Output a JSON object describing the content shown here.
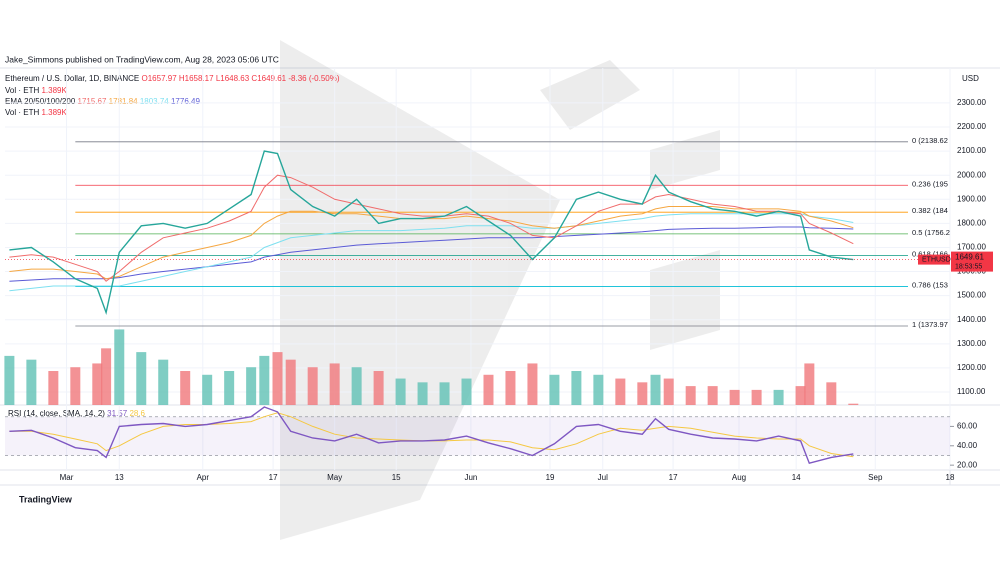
{
  "header": {
    "published": "Jake_Simmons published on TradingView.com, Aug 28, 2023 05:06 UTC",
    "currency": "USD",
    "brand": "TradingView"
  },
  "legend": {
    "symbol": "Ethereum / U.S. Dollar, 1D, BINANCE",
    "open": "O1657.97",
    "high": "H1658.17",
    "low": "L1648.63",
    "close": "C1649.61",
    "change": "-8.36 (-0.50%)",
    "vol1": "Vol · ETH",
    "vol1_value": "1.389K",
    "ema": "EMA 20/50/100/200",
    "vol2": "Vol · ETH",
    "vol2_value": "1.389K",
    "rsi": "RSI (14, close, SMA, 14, 2)"
  },
  "chart_data": {
    "type": "line",
    "ylim": [
      1046,
      2445
    ],
    "xlim": [
      "2023-02-15",
      "2023-09-18"
    ],
    "yticks": [
      {
        "value": 1100,
        "label": "1100.00"
      },
      {
        "value": 1200,
        "label": "1200.00"
      },
      {
        "value": 1300,
        "label": "1300.00"
      },
      {
        "value": 1400,
        "label": "1400.00"
      },
      {
        "value": 1500,
        "label": "1500.00"
      },
      {
        "value": 1600,
        "label": "1600.00"
      },
      {
        "value": 1700,
        "label": "1700.00"
      },
      {
        "value": 1800,
        "label": "1800.00"
      },
      {
        "value": 1900,
        "label": "1900.00"
      },
      {
        "value": 2000,
        "label": "2000.00"
      },
      {
        "value": 2100,
        "label": "2100.00"
      },
      {
        "value": 2200,
        "label": "2200.00"
      },
      {
        "value": 2300,
        "label": "2300.00"
      }
    ],
    "xticks": [
      {
        "value": "2023-03-01",
        "label": "Mar"
      },
      {
        "value": "2023-03-13",
        "label": "13"
      },
      {
        "value": "2023-04-01",
        "label": "Apr"
      },
      {
        "value": "2023-04-17",
        "label": "17"
      },
      {
        "value": "2023-05-01",
        "label": "May"
      },
      {
        "value": "2023-05-15",
        "label": "15"
      },
      {
        "value": "2023-06-01",
        "label": "Jun"
      },
      {
        "value": "2023-06-19",
        "label": "19"
      },
      {
        "value": "2023-07-01",
        "label": "Jul"
      },
      {
        "value": "2023-07-17",
        "label": "17"
      },
      {
        "value": "2023-08-01",
        "label": "Aug"
      },
      {
        "value": "2023-08-14",
        "label": "14"
      },
      {
        "value": "2023-09-01",
        "label": "Sep"
      },
      {
        "value": "2023-09-18",
        "label": "18"
      }
    ],
    "x": [
      "2023-02-16",
      "2023-02-21",
      "2023-02-26",
      "2023-03-03",
      "2023-03-08",
      "2023-03-10",
      "2023-03-13",
      "2023-03-18",
      "2023-03-23",
      "2023-03-28",
      "2023-04-02",
      "2023-04-07",
      "2023-04-12",
      "2023-04-15",
      "2023-04-18",
      "2023-04-21",
      "2023-04-26",
      "2023-05-01",
      "2023-05-06",
      "2023-05-11",
      "2023-05-16",
      "2023-05-21",
      "2023-05-26",
      "2023-05-31",
      "2023-06-05",
      "2023-06-10",
      "2023-06-15",
      "2023-06-20",
      "2023-06-25",
      "2023-06-30",
      "2023-07-05",
      "2023-07-10",
      "2023-07-13",
      "2023-07-16",
      "2023-07-21",
      "2023-07-26",
      "2023-07-31",
      "2023-08-05",
      "2023-08-10",
      "2023-08-15",
      "2023-08-17",
      "2023-08-22",
      "2023-08-27"
    ],
    "series": [
      {
        "name": "ETHUSD",
        "color": "#26a69a",
        "values": [
          1690,
          1700,
          1640,
          1570,
          1530,
          1430,
          1680,
          1790,
          1800,
          1780,
          1800,
          1860,
          1920,
          2100,
          2090,
          1940,
          1870,
          1830,
          1900,
          1800,
          1820,
          1820,
          1830,
          1870,
          1810,
          1750,
          1650,
          1740,
          1900,
          1930,
          1900,
          1880,
          2000,
          1930,
          1890,
          1860,
          1850,
          1830,
          1850,
          1830,
          1690,
          1660,
          1649.61
        ]
      },
      {
        "name": "1715.67",
        "color": "#f06c6c",
        "values": [
          1660,
          1670,
          1660,
          1630,
          1600,
          1560,
          1600,
          1680,
          1740,
          1760,
          1780,
          1810,
          1850,
          1950,
          2000,
          1990,
          1950,
          1900,
          1880,
          1860,
          1840,
          1830,
          1830,
          1840,
          1830,
          1800,
          1750,
          1740,
          1790,
          1850,
          1880,
          1880,
          1910,
          1920,
          1900,
          1880,
          1870,
          1850,
          1850,
          1840,
          1800,
          1760,
          1715.67
        ]
      },
      {
        "name": "1781.84",
        "color": "#f5a742",
        "values": [
          1600,
          1610,
          1610,
          1600,
          1590,
          1570,
          1580,
          1620,
          1660,
          1680,
          1700,
          1720,
          1750,
          1800,
          1830,
          1850,
          1850,
          1840,
          1840,
          1830,
          1820,
          1820,
          1820,
          1830,
          1820,
          1810,
          1790,
          1780,
          1790,
          1810,
          1830,
          1840,
          1860,
          1870,
          1870,
          1870,
          1860,
          1860,
          1860,
          1850,
          1830,
          1810,
          1781.84
        ]
      },
      {
        "name": "1803.74",
        "color": "#7ee0f0",
        "values": [
          1520,
          1530,
          1540,
          1540,
          1540,
          1540,
          1540,
          1560,
          1580,
          1600,
          1620,
          1640,
          1660,
          1700,
          1720,
          1740,
          1750,
          1760,
          1770,
          1770,
          1770,
          1775,
          1780,
          1790,
          1790,
          1790,
          1780,
          1780,
          1790,
          1800,
          1810,
          1820,
          1830,
          1835,
          1840,
          1840,
          1840,
          1840,
          1840,
          1840,
          1830,
          1820,
          1803.74
        ]
      },
      {
        "name": "1776.49",
        "color": "#5b5bd6",
        "values": [
          1560,
          1565,
          1570,
          1570,
          1570,
          1570,
          1575,
          1590,
          1600,
          1610,
          1620,
          1630,
          1640,
          1660,
          1670,
          1680,
          1690,
          1700,
          1710,
          1715,
          1720,
          1725,
          1730,
          1735,
          1740,
          1740,
          1740,
          1745,
          1750,
          1755,
          1760,
          1765,
          1770,
          1775,
          1778,
          1780,
          1780,
          1782,
          1785,
          1785,
          1782,
          1780,
          1776.49
        ]
      }
    ],
    "last_price": {
      "name": "ETHUSD",
      "value": 1649.61,
      "time": "18:53:55",
      "color": "#f23645"
    },
    "volume": {
      "vlim": [
        0,
        90000
      ],
      "up_color": "#5fc1b4",
      "down_color": "#f0777a",
      "values": [
        52000,
        48000,
        36000,
        40000,
        44000,
        60000,
        80000,
        56000,
        48000,
        36000,
        32000,
        36000,
        40000,
        52000,
        56000,
        48000,
        40000,
        44000,
        40000,
        36000,
        28000,
        24000,
        24000,
        28000,
        32000,
        36000,
        44000,
        32000,
        36000,
        32000,
        28000,
        24000,
        32000,
        28000,
        20000,
        20000,
        16000,
        16000,
        16000,
        20000,
        44000,
        24000,
        1389
      ]
    },
    "fib": [
      {
        "value": 2138.62,
        "label": "0 (2138.62",
        "color": "#787b86"
      },
      {
        "value": 1958.16,
        "label": "0.236 (195",
        "color": "#f23645"
      },
      {
        "value": 1846.52,
        "label": "0.382 (184",
        "color": "#ff9800"
      },
      {
        "value": 1756.3,
        "label": "0.5 (1756.2",
        "color": "#4caf50"
      },
      {
        "value": 1666.07,
        "label": "0.618 (166",
        "color": "#089981"
      },
      {
        "value": 1537.62,
        "label": "0.786 (153",
        "color": "#00bcd4"
      },
      {
        "value": 1373.97,
        "label": "1 (1373.97",
        "color": "#787b86"
      }
    ],
    "fib_start": "2023-03-03",
    "rsi": {
      "ylim": [
        15,
        79
      ],
      "band": [
        30,
        70
      ],
      "yticks": [
        {
          "value": 20,
          "label": "20.00"
        },
        {
          "value": 40,
          "label": "40.00"
        },
        {
          "value": 60,
          "label": "60.00"
        }
      ],
      "series": [
        {
          "name": "31.57",
          "color": "#7e57c2",
          "values": [
            55,
            56,
            48,
            38,
            35,
            28,
            60,
            62,
            63,
            60,
            62,
            66,
            70,
            80,
            75,
            55,
            48,
            45,
            52,
            43,
            45,
            45,
            46,
            50,
            43,
            37,
            30,
            42,
            60,
            62,
            55,
            52,
            68,
            57,
            52,
            48,
            47,
            45,
            50,
            45,
            22,
            28,
            31.57
          ]
        },
        {
          "name": "28.6",
          "color": "#f5c842",
          "values": [
            55,
            55,
            52,
            47,
            42,
            35,
            40,
            52,
            60,
            62,
            62,
            63,
            65,
            70,
            74,
            70,
            60,
            52,
            48,
            47,
            46,
            45,
            45,
            46,
            46,
            44,
            38,
            36,
            42,
            52,
            58,
            56,
            58,
            60,
            58,
            54,
            50,
            48,
            47,
            47,
            40,
            32,
            28.6
          ]
        }
      ]
    }
  }
}
